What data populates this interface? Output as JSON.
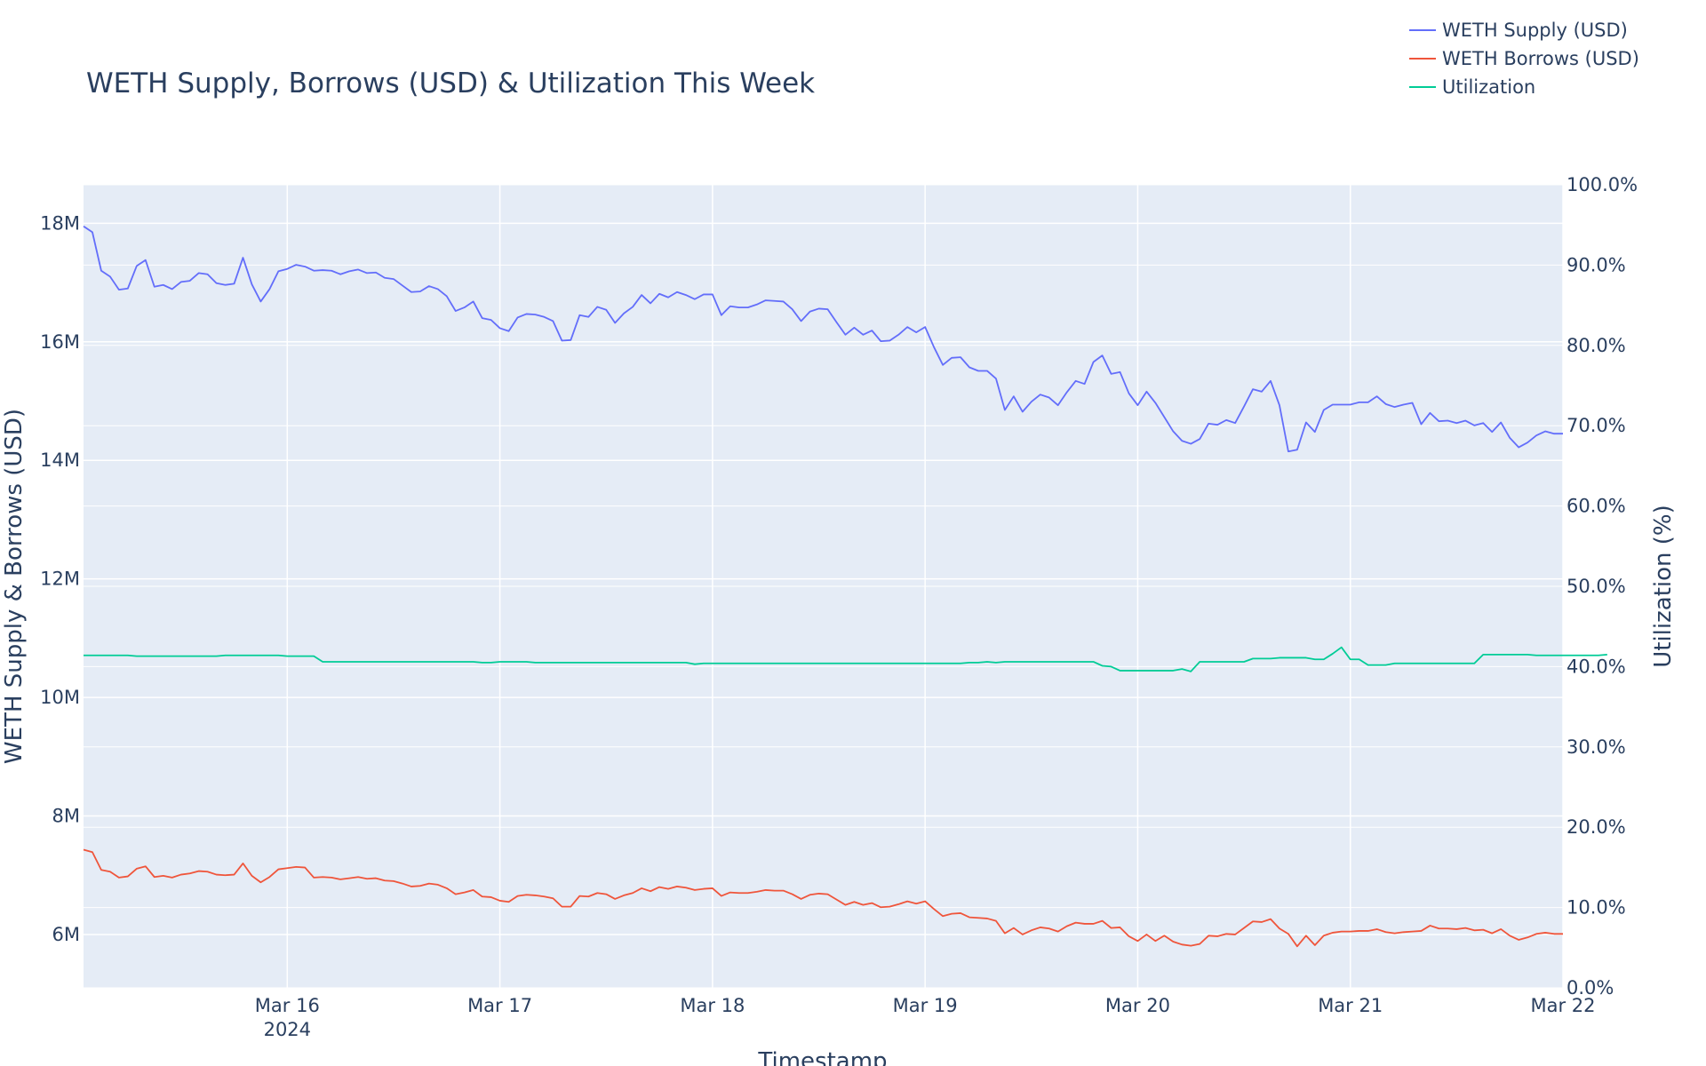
{
  "chart_data": {
    "type": "line",
    "title": "WETH Supply, Borrows (USD) & Utilization This Week",
    "xlabel": "Timestamp",
    "ylabel": "WETH Supply & Borrows (USD)",
    "y2label": "Utilization (%)",
    "x_start": "2024-03-15T01:00",
    "x_step_hours": 1,
    "xlim": [
      "2024-03-15T01:00",
      "2024-03-22T00:00"
    ],
    "ylim": [
      5100000,
      18650000
    ],
    "y2lim": [
      0,
      100
    ],
    "x_ticks": [
      {
        "label": "Mar 16",
        "sub": "2024",
        "hours": 23
      },
      {
        "label": "Mar 17",
        "sub": "",
        "hours": 47
      },
      {
        "label": "Mar 18",
        "sub": "",
        "hours": 71
      },
      {
        "label": "Mar 19",
        "sub": "",
        "hours": 95
      },
      {
        "label": "Mar 20",
        "sub": "",
        "hours": 119
      },
      {
        "label": "Mar 21",
        "sub": "",
        "hours": 143
      },
      {
        "label": "Mar 22",
        "sub": "",
        "hours": 167
      }
    ],
    "y_ticks": [
      {
        "label": "6M",
        "value": 6000000
      },
      {
        "label": "8M",
        "value": 8000000
      },
      {
        "label": "10M",
        "value": 10000000
      },
      {
        "label": "12M",
        "value": 12000000
      },
      {
        "label": "14M",
        "value": 14000000
      },
      {
        "label": "16M",
        "value": 16000000
      },
      {
        "label": "18M",
        "value": 18000000
      }
    ],
    "y2_ticks": [
      {
        "label": "0.0%",
        "value": 0
      },
      {
        "label": "10.0%",
        "value": 10
      },
      {
        "label": "20.0%",
        "value": 20
      },
      {
        "label": "30.0%",
        "value": 30
      },
      {
        "label": "40.0%",
        "value": 40
      },
      {
        "label": "50.0%",
        "value": 50
      },
      {
        "label": "60.0%",
        "value": 60
      },
      {
        "label": "70.0%",
        "value": 70
      },
      {
        "label": "80.0%",
        "value": 80
      },
      {
        "label": "90.0%",
        "value": 90
      },
      {
        "label": "100.0%",
        "value": 100
      }
    ],
    "grid": true,
    "legend_position": "top-right",
    "plot_bg": "#e5ecf6",
    "series": [
      {
        "name": "WETH Supply (USD)",
        "axis": "y",
        "color": "#636efa",
        "values": [
          17950000,
          17850000,
          17200000,
          17100000,
          16880000,
          16900000,
          17280000,
          17380000,
          16930000,
          16960000,
          16890000,
          17010000,
          17030000,
          17160000,
          17140000,
          16990000,
          16960000,
          16980000,
          17420000,
          16970000,
          16680000,
          16890000,
          17190000,
          17230000,
          17300000,
          17270000,
          17200000,
          17210000,
          17200000,
          17140000,
          17190000,
          17220000,
          17160000,
          17170000,
          17080000,
          17060000,
          16950000,
          16840000,
          16850000,
          16940000,
          16890000,
          16770000,
          16520000,
          16580000,
          16680000,
          16400000,
          16370000,
          16230000,
          16180000,
          16410000,
          16470000,
          16460000,
          16420000,
          16350000,
          16020000,
          16030000,
          16450000,
          16420000,
          16590000,
          16540000,
          16320000,
          16480000,
          16590000,
          16790000,
          16650000,
          16810000,
          16750000,
          16840000,
          16790000,
          16720000,
          16800000,
          16800000,
          16450000,
          16600000,
          16580000,
          16580000,
          16630000,
          16700000,
          16690000,
          16680000,
          16550000,
          16350000,
          16510000,
          16560000,
          16550000,
          16330000,
          16120000,
          16240000,
          16120000,
          16190000,
          16010000,
          16020000,
          16120000,
          16250000,
          16160000,
          16250000,
          15910000,
          15610000,
          15730000,
          15740000,
          15570000,
          15510000,
          15510000,
          15380000,
          14850000,
          15080000,
          14820000,
          14990000,
          15110000,
          15060000,
          14930000,
          15150000,
          15340000,
          15290000,
          15660000,
          15770000,
          15460000,
          15490000,
          15130000,
          14930000,
          15160000,
          14970000,
          14730000,
          14490000,
          14330000,
          14280000,
          14360000,
          14620000,
          14600000,
          14680000,
          14630000,
          14910000,
          15200000,
          15160000,
          15340000,
          14930000,
          14150000,
          14180000,
          14640000,
          14480000,
          14850000,
          14940000,
          14940000,
          14940000,
          14980000,
          14980000,
          15080000,
          14950000,
          14900000,
          14940000,
          14970000,
          14610000,
          14800000,
          14660000,
          14670000,
          14630000,
          14670000,
          14590000,
          14630000,
          14480000,
          14640000,
          14380000,
          14220000,
          14300000,
          14420000,
          14490000,
          14450000,
          14450000
        ]
      },
      {
        "name": "WETH Borrows (USD)",
        "axis": "y",
        "color": "#ef553b",
        "values": [
          7430000,
          7390000,
          7090000,
          7060000,
          6960000,
          6980000,
          7110000,
          7150000,
          6970000,
          6990000,
          6960000,
          7010000,
          7030000,
          7070000,
          7060000,
          7010000,
          7000000,
          7010000,
          7200000,
          6990000,
          6880000,
          6970000,
          7100000,
          7120000,
          7140000,
          7130000,
          6960000,
          6970000,
          6960000,
          6930000,
          6950000,
          6970000,
          6940000,
          6950000,
          6910000,
          6900000,
          6860000,
          6810000,
          6820000,
          6860000,
          6840000,
          6780000,
          6680000,
          6710000,
          6750000,
          6640000,
          6630000,
          6570000,
          6550000,
          6650000,
          6670000,
          6660000,
          6640000,
          6610000,
          6470000,
          6470000,
          6650000,
          6640000,
          6700000,
          6680000,
          6600000,
          6660000,
          6700000,
          6780000,
          6730000,
          6800000,
          6770000,
          6810000,
          6790000,
          6750000,
          6770000,
          6780000,
          6650000,
          6710000,
          6700000,
          6700000,
          6720000,
          6750000,
          6740000,
          6740000,
          6680000,
          6600000,
          6670000,
          6690000,
          6680000,
          6590000,
          6500000,
          6550000,
          6500000,
          6530000,
          6460000,
          6470000,
          6510000,
          6560000,
          6520000,
          6560000,
          6430000,
          6310000,
          6350000,
          6360000,
          6290000,
          6280000,
          6270000,
          6230000,
          6020000,
          6110000,
          6000000,
          6070000,
          6120000,
          6100000,
          6050000,
          6140000,
          6200000,
          6180000,
          6180000,
          6230000,
          6110000,
          6120000,
          5970000,
          5890000,
          6000000,
          5890000,
          5980000,
          5880000,
          5830000,
          5810000,
          5840000,
          5980000,
          5970000,
          6010000,
          6000000,
          6110000,
          6220000,
          6210000,
          6260000,
          6100000,
          6010000,
          5800000,
          5980000,
          5820000,
          5980000,
          6030000,
          6050000,
          6050000,
          6060000,
          6060000,
          6090000,
          6040000,
          6020000,
          6040000,
          6050000,
          6060000,
          6150000,
          6100000,
          6100000,
          6090000,
          6110000,
          6070000,
          6080000,
          6020000,
          6090000,
          5980000,
          5910000,
          5950000,
          6010000,
          6030000,
          6010000,
          6010000
        ]
      },
      {
        "name": "Utilization",
        "axis": "y2",
        "color": "#00cc96",
        "values": [
          41.4,
          41.4,
          41.4,
          41.4,
          41.4,
          41.4,
          41.3,
          41.3,
          41.3,
          41.3,
          41.3,
          41.3,
          41.3,
          41.3,
          41.3,
          41.3,
          41.4,
          41.4,
          41.4,
          41.4,
          41.4,
          41.4,
          41.4,
          41.3,
          41.3,
          41.3,
          41.3,
          40.6,
          40.6,
          40.6,
          40.6,
          40.6,
          40.6,
          40.6,
          40.6,
          40.6,
          40.6,
          40.6,
          40.6,
          40.6,
          40.6,
          40.6,
          40.6,
          40.6,
          40.6,
          40.5,
          40.5,
          40.6,
          40.6,
          40.6,
          40.6,
          40.5,
          40.5,
          40.5,
          40.5,
          40.5,
          40.5,
          40.5,
          40.5,
          40.5,
          40.5,
          40.5,
          40.5,
          40.5,
          40.5,
          40.5,
          40.5,
          40.5,
          40.5,
          40.3,
          40.4,
          40.4,
          40.4,
          40.4,
          40.4,
          40.4,
          40.4,
          40.4,
          40.4,
          40.4,
          40.4,
          40.4,
          40.4,
          40.4,
          40.4,
          40.4,
          40.4,
          40.4,
          40.4,
          40.4,
          40.4,
          40.4,
          40.4,
          40.4,
          40.4,
          40.4,
          40.4,
          40.4,
          40.4,
          40.4,
          40.5,
          40.5,
          40.6,
          40.5,
          40.6,
          40.6,
          40.6,
          40.6,
          40.6,
          40.6,
          40.6,
          40.6,
          40.6,
          40.6,
          40.6,
          40.1,
          40.0,
          39.5,
          39.5,
          39.5,
          39.5,
          39.5,
          39.5,
          39.5,
          39.7,
          39.4,
          40.6,
          40.6,
          40.6,
          40.6,
          40.6,
          40.6,
          41.0,
          41.0,
          41.0,
          41.1,
          41.1,
          41.1,
          41.1,
          40.9,
          40.9,
          41.6,
          42.4,
          40.9,
          40.9,
          40.2,
          40.2,
          40.2,
          40.4,
          40.4,
          40.4,
          40.4,
          40.4,
          40.4,
          40.4,
          40.4,
          40.4,
          40.4,
          41.5,
          41.5,
          41.5,
          41.5,
          41.5,
          41.5,
          41.4,
          41.4,
          41.4,
          41.4,
          41.4,
          41.4,
          41.4,
          41.4,
          41.5
        ]
      }
    ]
  }
}
